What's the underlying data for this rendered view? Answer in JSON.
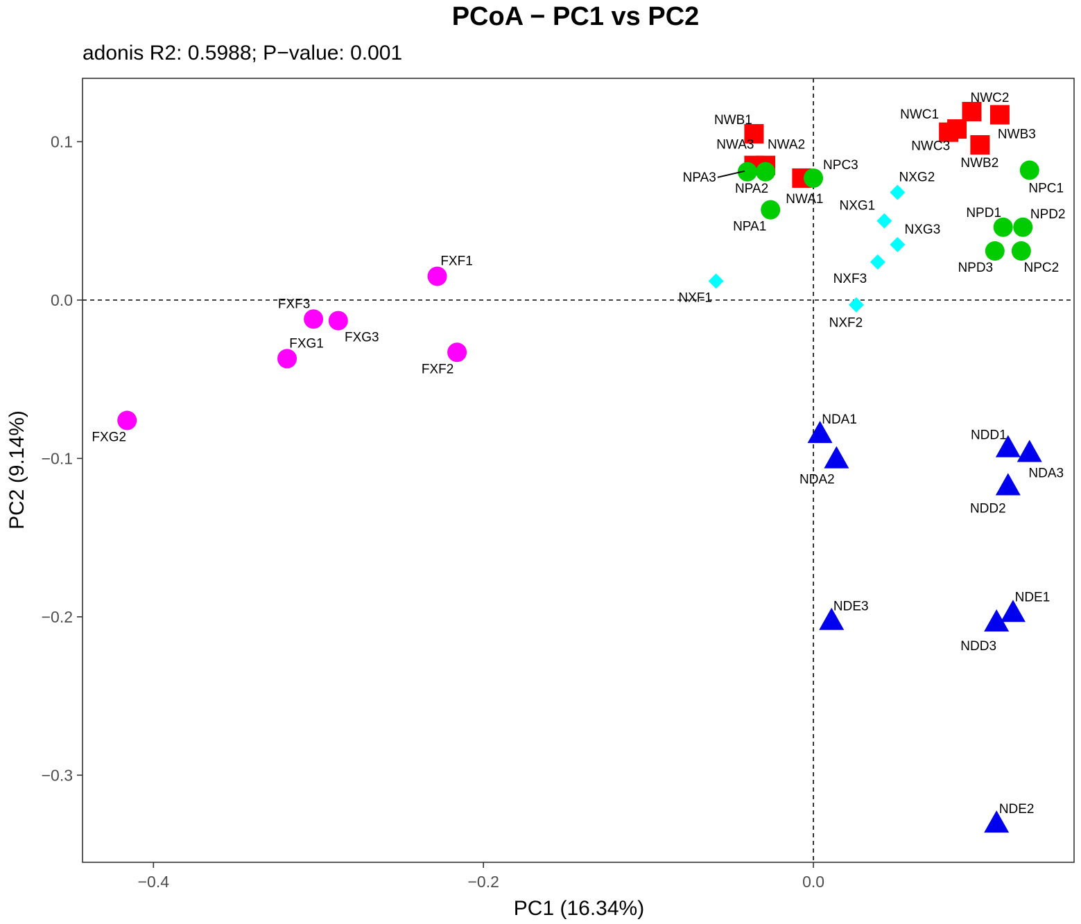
{
  "chart_data": {
    "type": "scatter",
    "title": "PCoA − PC1 vs PC2",
    "subtitle": "adonis R2: 0.5988; P−value: 0.001",
    "xlabel": "PC1 (16.34%)",
    "ylabel": "PC2 (9.14%)",
    "xlim": [
      -0.443,
      0.158
    ],
    "ylim": [
      -0.355,
      0.14
    ],
    "x_ticks": [
      -0.4,
      -0.2,
      0.0
    ],
    "x_tick_labels": [
      "−0.4",
      "−0.2",
      "0.0"
    ],
    "y_ticks": [
      0.1,
      0.0,
      -0.1,
      -0.2,
      -0.3
    ],
    "y_tick_labels": [
      "0.1",
      "0.0",
      "−0.1",
      "−0.2",
      "−0.3"
    ],
    "reference_lines": {
      "x": 0,
      "y": 0,
      "style": "dashed"
    },
    "grid": false,
    "legend": "none",
    "series": [
      {
        "name": "FX",
        "shape": "circle",
        "color": "#ff00ff",
        "points": [
          {
            "label": "FXF1",
            "x": -0.228,
            "y": 0.015
          },
          {
            "label": "FXF2",
            "x": -0.216,
            "y": -0.033
          },
          {
            "label": "FXF3",
            "x": -0.303,
            "y": -0.012
          },
          {
            "label": "FXG1",
            "x": -0.319,
            "y": -0.037
          },
          {
            "label": "FXG2",
            "x": -0.416,
            "y": -0.076
          },
          {
            "label": "FXG3",
            "x": -0.288,
            "y": -0.013
          }
        ]
      },
      {
        "name": "NW",
        "shape": "square",
        "color": "#ff0000",
        "points": [
          {
            "label": "NWA1",
            "x": -0.007,
            "y": 0.077
          },
          {
            "label": "NWA2",
            "x": -0.029,
            "y": 0.085
          },
          {
            "label": "NWA3",
            "x": -0.036,
            "y": 0.085
          },
          {
            "label": "NWB1",
            "x": -0.036,
            "y": 0.105
          },
          {
            "label": "NWB2",
            "x": 0.101,
            "y": 0.098
          },
          {
            "label": "NWB3",
            "x": 0.113,
            "y": 0.117
          },
          {
            "label": "NWC1",
            "x": 0.087,
            "y": 0.108
          },
          {
            "label": "NWC2",
            "x": 0.096,
            "y": 0.119
          },
          {
            "label": "NWC3",
            "x": 0.082,
            "y": 0.106
          }
        ]
      },
      {
        "name": "NP",
        "shape": "circle",
        "color": "#00cc00",
        "points": [
          {
            "label": "NPA1",
            "x": -0.026,
            "y": 0.057
          },
          {
            "label": "NPA2",
            "x": -0.029,
            "y": 0.081
          },
          {
            "label": "NPA3",
            "x": -0.04,
            "y": 0.081
          },
          {
            "label": "NPC1",
            "x": 0.131,
            "y": 0.082
          },
          {
            "label": "NPC2",
            "x": 0.126,
            "y": 0.031
          },
          {
            "label": "NPC3",
            "x": 0.0,
            "y": 0.077
          },
          {
            "label": "NPD1",
            "x": 0.115,
            "y": 0.046
          },
          {
            "label": "NPD2",
            "x": 0.127,
            "y": 0.046
          },
          {
            "label": "NPD3",
            "x": 0.11,
            "y": 0.031
          }
        ]
      },
      {
        "name": "NX",
        "shape": "diamond",
        "color": "#00ffff",
        "points": [
          {
            "label": "NXF1",
            "x": -0.059,
            "y": 0.012
          },
          {
            "label": "NXF2",
            "x": 0.026,
            "y": -0.003
          },
          {
            "label": "NXF3",
            "x": 0.039,
            "y": 0.024
          },
          {
            "label": "NXG1",
            "x": 0.043,
            "y": 0.05
          },
          {
            "label": "NXG2",
            "x": 0.051,
            "y": 0.068
          },
          {
            "label": "NXG3",
            "x": 0.051,
            "y": 0.035
          }
        ]
      },
      {
        "name": "ND",
        "shape": "triangle",
        "color": "#0000ee",
        "points": [
          {
            "label": "NDA1",
            "x": 0.004,
            "y": -0.085
          },
          {
            "label": "NDA2",
            "x": 0.014,
            "y": -0.101
          },
          {
            "label": "NDA3",
            "x": 0.131,
            "y": -0.097
          },
          {
            "label": "NDD1",
            "x": 0.118,
            "y": -0.094
          },
          {
            "label": "NDD2",
            "x": 0.118,
            "y": -0.118
          },
          {
            "label": "NDD3",
            "x": 0.111,
            "y": -0.204
          },
          {
            "label": "NDE1",
            "x": 0.121,
            "y": -0.198
          },
          {
            "label": "NDE2",
            "x": 0.111,
            "y": -0.331
          },
          {
            "label": "NDE3",
            "x": 0.011,
            "y": -0.203
          }
        ]
      }
    ]
  }
}
